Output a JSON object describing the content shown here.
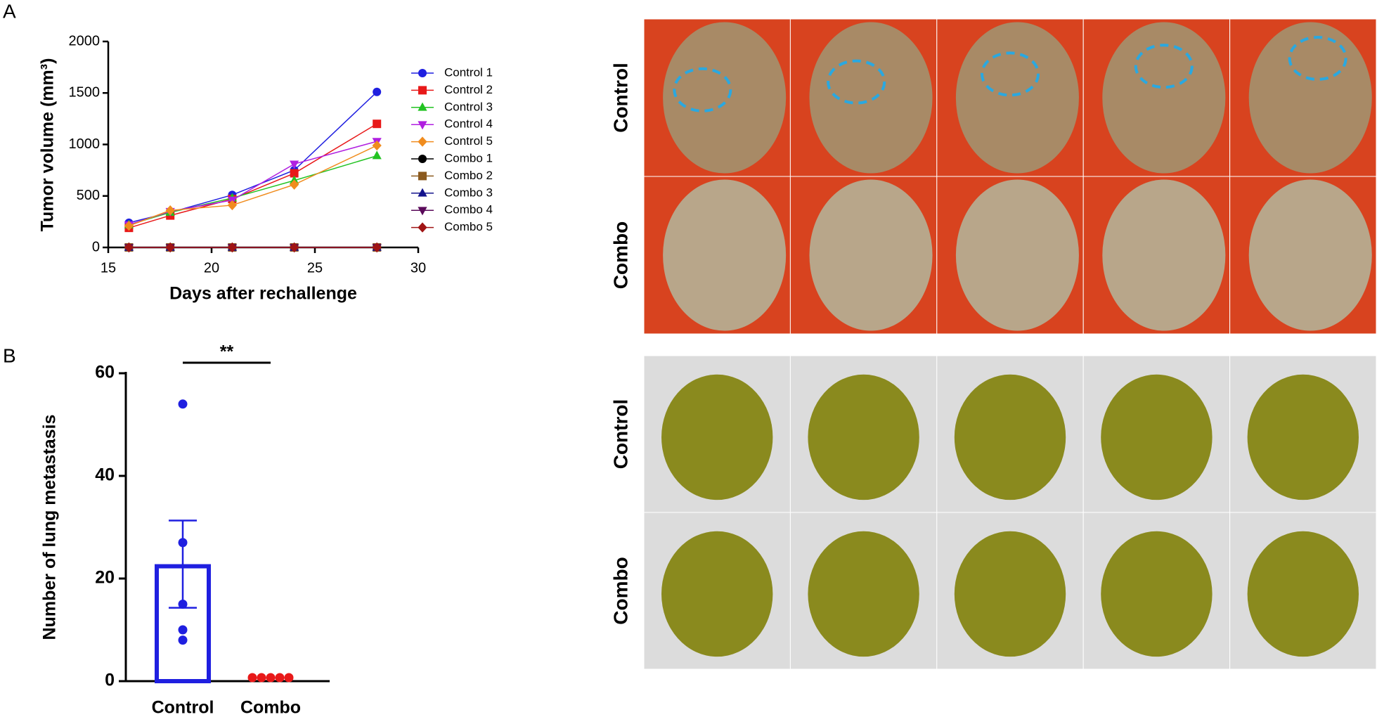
{
  "panel_labels": [
    "A",
    "B"
  ],
  "chart_data": [
    {
      "type": "line",
      "x_label": "Days after rechallenge",
      "y_label": "Tumor volume (mm³)",
      "x": [
        16,
        18,
        21,
        24,
        28
      ],
      "xlim": [
        15,
        30
      ],
      "xticks": [
        15,
        20,
        25,
        30
      ],
      "ylim": [
        0,
        2000
      ],
      "yticks": [
        0,
        500,
        1000,
        1500,
        2000
      ],
      "legend": "right",
      "series": [
        {
          "name": "Control 1",
          "color": "#1f1fe0",
          "marker": "circle",
          "values": [
            240,
            340,
            510,
            750,
            1510
          ]
        },
        {
          "name": "Control 2",
          "color": "#e81919",
          "marker": "square",
          "values": [
            190,
            310,
            470,
            720,
            1200
          ]
        },
        {
          "name": "Control 3",
          "color": "#22c322",
          "marker": "triangle",
          "values": [
            220,
            340,
            480,
            650,
            890
          ]
        },
        {
          "name": "Control 4",
          "color": "#b01fe0",
          "marker": "triangle-down",
          "values": [
            220,
            350,
            460,
            810,
            1030
          ]
        },
        {
          "name": "Control 5",
          "color": "#f08c1e",
          "marker": "diamond",
          "values": [
            210,
            360,
            410,
            610,
            990
          ]
        },
        {
          "name": "Combo 1",
          "color": "#000000",
          "marker": "circle",
          "values": [
            0,
            0,
            0,
            0,
            0
          ]
        },
        {
          "name": "Combo 2",
          "color": "#8b5a1e",
          "marker": "square",
          "values": [
            0,
            0,
            0,
            0,
            0
          ]
        },
        {
          "name": "Combo 3",
          "color": "#14148c",
          "marker": "triangle",
          "values": [
            0,
            0,
            0,
            0,
            0
          ]
        },
        {
          "name": "Combo 4",
          "color": "#5a0a5a",
          "marker": "triangle-down",
          "values": [
            0,
            0,
            0,
            0,
            0
          ]
        },
        {
          "name": "Combo 5",
          "color": "#a01414",
          "marker": "diamond",
          "values": [
            0,
            0,
            0,
            0,
            0
          ]
        }
      ]
    },
    {
      "type": "bar",
      "y_label": "Number of lung metastasis",
      "annotation": "**",
      "categories": [
        "Control",
        "Combo"
      ],
      "colors": [
        "#1f1fe0",
        "#e81919"
      ],
      "values": [
        22.8,
        0
      ],
      "errors": [
        8.5,
        0
      ],
      "points": [
        [
          54,
          27,
          15,
          10,
          8
        ],
        [
          0,
          0,
          0,
          0,
          0
        ]
      ],
      "ylim": [
        0,
        60
      ],
      "yticks": [
        0,
        20,
        40,
        60
      ]
    }
  ],
  "photo_panels": [
    {
      "rows": [
        "Control",
        "Combo"
      ]
    },
    {
      "rows": [
        "Control",
        "Combo"
      ]
    }
  ]
}
